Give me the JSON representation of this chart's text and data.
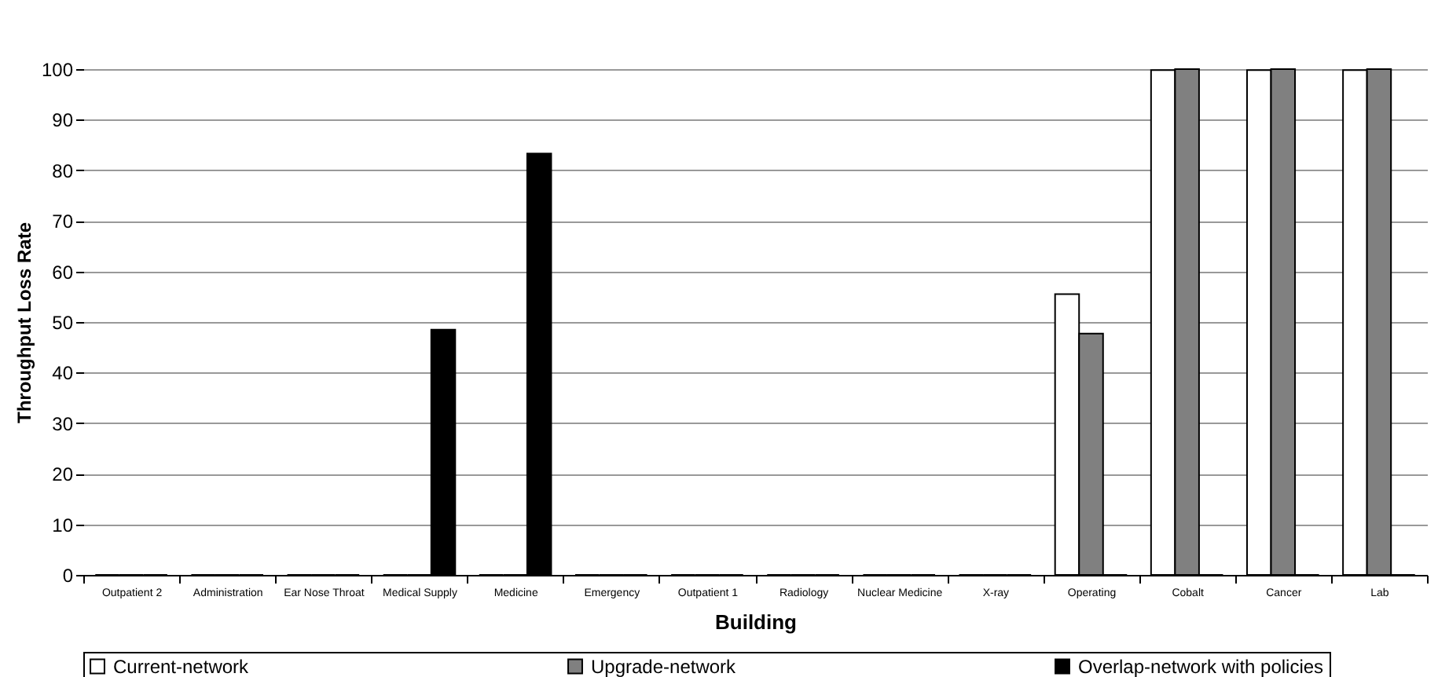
{
  "chart_data": {
    "type": "bar",
    "xlabel": "Building",
    "ylabel": "Throughput Loss Rate",
    "categories": [
      "Outpatient 2",
      "Administration",
      "Ear Nose Throat",
      "Medical Supply",
      "Medicine",
      "Emergency",
      "Outpatient 1",
      "Radiology",
      "Nuclear Medicine",
      "X-ray",
      "Operating",
      "Cobalt",
      "Cancer",
      "Lab"
    ],
    "series": [
      {
        "name": "Current-network",
        "color": "#ffffff",
        "values": [
          0,
          0,
          0,
          0,
          0,
          0,
          0,
          0,
          0,
          0,
          55.5,
          99.8,
          99.8,
          99.8
        ]
      },
      {
        "name": "Upgrade-network",
        "color": "#808080",
        "values": [
          0,
          0,
          0,
          0,
          0,
          0,
          0,
          0,
          0,
          0,
          47.7,
          100,
          100,
          100
        ]
      },
      {
        "name": "Overlap-network with policies",
        "color": "#000000",
        "values": [
          0,
          0,
          0,
          48.5,
          83.3,
          0,
          0,
          0,
          0,
          0,
          0,
          0,
          0,
          0
        ]
      }
    ],
    "ylim": [
      0,
      100
    ],
    "yticks": [
      0,
      10,
      20,
      30,
      40,
      50,
      60,
      70,
      80,
      90,
      100
    ],
    "grid": "y",
    "legend": "bottom"
  }
}
